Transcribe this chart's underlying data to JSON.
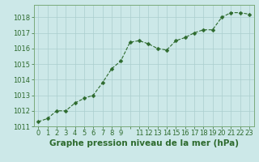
{
  "x": [
    0,
    1,
    2,
    3,
    4,
    5,
    6,
    7,
    8,
    9,
    10,
    11,
    12,
    13,
    14,
    15,
    16,
    17,
    18,
    19,
    20,
    21,
    22,
    23
  ],
  "y": [
    1011.3,
    1011.5,
    1012.0,
    1012.0,
    1012.5,
    1012.8,
    1013.0,
    1013.8,
    1014.7,
    1015.2,
    1016.4,
    1016.5,
    1016.3,
    1016.0,
    1015.9,
    1016.5,
    1016.7,
    1017.0,
    1017.2,
    1017.2,
    1018.0,
    1018.3,
    1018.3,
    1018.2
  ],
  "line_color": "#2d6a2d",
  "marker": "D",
  "marker_size": 2.5,
  "bg_color": "#cce8e8",
  "grid_color": "#aacece",
  "title": "Graphe pression niveau de la mer (hPa)",
  "ylim": [
    1011,
    1018.8
  ],
  "yticks": [
    1011,
    1012,
    1013,
    1014,
    1015,
    1016,
    1017,
    1018
  ],
  "xlim": [
    -0.5,
    23.5
  ],
  "xtick_labels": [
    "0",
    "1",
    "2",
    "3",
    "4",
    "5",
    "6",
    "7",
    "8",
    "9",
    "",
    "11",
    "12",
    "13",
    "14",
    "15",
    "16",
    "17",
    "18",
    "19",
    "20",
    "21",
    "22",
    "23"
  ],
  "title_fontsize": 7.5,
  "tick_fontsize": 6,
  "title_color": "#2d6a2d",
  "tick_color": "#2d6a2d",
  "spine_color": "#7aaa7a"
}
